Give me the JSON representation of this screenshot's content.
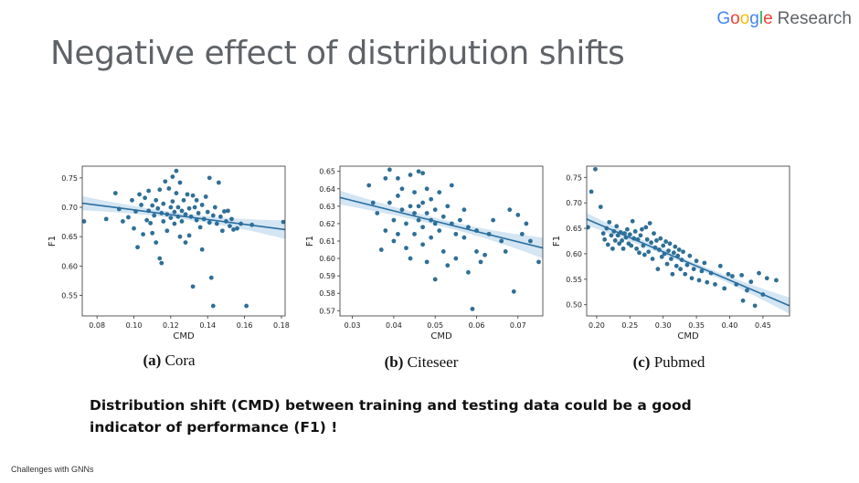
{
  "logo": {
    "g1": "G",
    "g2": "o",
    "g3": "o",
    "g4": "g",
    "g5": "l",
    "g6": "e",
    "research": "Research"
  },
  "title": "Negative effect of distribution shifts",
  "statement": "Distribution shift (CMD) between training and testing data could be a good indicator of performance (F1) !",
  "footer": "Challenges with GNNs",
  "colors": {
    "point": "#2f6f96",
    "line": "#2a6fa0",
    "band": "#c6dcef"
  },
  "chart_data": [
    {
      "type": "scatter",
      "id": "cora",
      "caption_tag": "(a)",
      "caption_name": "Cora",
      "xlabel": "CMD",
      "ylabel": "F1",
      "xlim": [
        0.072,
        0.182
      ],
      "ylim": [
        0.515,
        0.77
      ],
      "xticks": [
        0.08,
        0.1,
        0.12,
        0.14,
        0.16,
        0.18
      ],
      "xtick_labels": [
        "0.08",
        "0.10",
        "0.12",
        "0.14",
        "0.16",
        "0.18"
      ],
      "yticks": [
        0.55,
        0.6,
        0.65,
        0.7,
        0.75
      ],
      "ytick_labels": [
        "0.55",
        "0.60",
        "0.65",
        "0.70",
        "0.75"
      ],
      "fit": {
        "x": [
          0.072,
          0.182
        ],
        "y": [
          0.707,
          0.662
        ],
        "band_start": 0.012,
        "band_mid": 0.005,
        "band_end": 0.016
      },
      "points": [
        [
          0.073,
          0.676
        ],
        [
          0.085,
          0.68
        ],
        [
          0.09,
          0.724
        ],
        [
          0.092,
          0.697
        ],
        [
          0.094,
          0.676
        ],
        [
          0.097,
          0.683
        ],
        [
          0.099,
          0.712
        ],
        [
          0.1,
          0.664
        ],
        [
          0.101,
          0.693
        ],
        [
          0.102,
          0.632
        ],
        [
          0.103,
          0.722
        ],
        [
          0.104,
          0.704
        ],
        [
          0.105,
          0.654
        ],
        [
          0.106,
          0.716
        ],
        [
          0.107,
          0.678
        ],
        [
          0.108,
          0.728
        ],
        [
          0.108,
          0.694
        ],
        [
          0.109,
          0.673
        ],
        [
          0.11,
          0.703
        ],
        [
          0.11,
          0.656
        ],
        [
          0.111,
          0.686
        ],
        [
          0.112,
          0.712
        ],
        [
          0.112,
          0.64
        ],
        [
          0.113,
          0.698
        ],
        [
          0.114,
          0.73
        ],
        [
          0.114,
          0.613
        ],
        [
          0.115,
          0.69
        ],
        [
          0.115,
          0.605
        ],
        [
          0.116,
          0.676
        ],
        [
          0.116,
          0.706
        ],
        [
          0.117,
          0.744
        ],
        [
          0.118,
          0.688
        ],
        [
          0.118,
          0.66
        ],
        [
          0.119,
          0.732
        ],
        [
          0.12,
          0.7
        ],
        [
          0.12,
          0.682
        ],
        [
          0.121,
          0.752
        ],
        [
          0.121,
          0.71
        ],
        [
          0.122,
          0.672
        ],
        [
          0.122,
          0.692
        ],
        [
          0.123,
          0.762
        ],
        [
          0.123,
          0.724
        ],
        [
          0.124,
          0.684
        ],
        [
          0.124,
          0.7
        ],
        [
          0.125,
          0.65
        ],
        [
          0.125,
          0.742
        ],
        [
          0.126,
          0.694
        ],
        [
          0.126,
          0.676
        ],
        [
          0.127,
          0.712
        ],
        [
          0.128,
          0.688
        ],
        [
          0.128,
          0.64
        ],
        [
          0.129,
          0.722
        ],
        [
          0.13,
          0.698
        ],
        [
          0.13,
          0.652
        ],
        [
          0.131,
          0.684
        ],
        [
          0.132,
          0.72
        ],
        [
          0.132,
          0.565
        ],
        [
          0.133,
          0.7
        ],
        [
          0.134,
          0.678
        ],
        [
          0.134,
          0.712
        ],
        [
          0.135,
          0.69
        ],
        [
          0.136,
          0.666
        ],
        [
          0.137,
          0.704
        ],
        [
          0.137,
          0.628
        ],
        [
          0.138,
          0.68
        ],
        [
          0.139,
          0.718
        ],
        [
          0.14,
          0.692
        ],
        [
          0.141,
          0.674
        ],
        [
          0.141,
          0.75
        ],
        [
          0.142,
          0.58
        ],
        [
          0.143,
          0.686
        ],
        [
          0.143,
          0.532
        ],
        [
          0.144,
          0.7
        ],
        [
          0.145,
          0.672
        ],
        [
          0.146,
          0.742
        ],
        [
          0.147,
          0.684
        ],
        [
          0.148,
          0.66
        ],
        [
          0.149,
          0.693
        ],
        [
          0.15,
          0.676
        ],
        [
          0.151,
          0.694
        ],
        [
          0.152,
          0.668
        ],
        [
          0.153,
          0.68
        ],
        [
          0.154,
          0.662
        ],
        [
          0.156,
          0.664
        ],
        [
          0.158,
          0.672
        ],
        [
          0.161,
          0.532
        ],
        [
          0.164,
          0.67
        ],
        [
          0.181,
          0.675
        ]
      ]
    },
    {
      "type": "scatter",
      "id": "citeseer",
      "caption_tag": "(b)",
      "caption_name": "Citeseer",
      "xlabel": "CMD",
      "ylabel": "F1",
      "xlim": [
        0.027,
        0.076
      ],
      "ylim": [
        0.567,
        0.653
      ],
      "xticks": [
        0.03,
        0.04,
        0.05,
        0.06,
        0.07
      ],
      "xtick_labels": [
        "0.03",
        "0.04",
        "0.05",
        "0.06",
        "0.07"
      ],
      "yticks": [
        0.57,
        0.58,
        0.59,
        0.6,
        0.61,
        0.62,
        0.63,
        0.64,
        0.65
      ],
      "ytick_labels": [
        "0.57",
        "0.58",
        "0.59",
        "0.60",
        "0.61",
        "0.62",
        "0.63",
        "0.64",
        "0.65"
      ],
      "fit": {
        "x": [
          0.027,
          0.076
        ],
        "y": [
          0.635,
          0.606
        ],
        "band_start": 0.004,
        "band_mid": 0.002,
        "band_end": 0.006
      },
      "points": [
        [
          0.034,
          0.642
        ],
        [
          0.035,
          0.632
        ],
        [
          0.036,
          0.626
        ],
        [
          0.037,
          0.605
        ],
        [
          0.038,
          0.646
        ],
        [
          0.038,
          0.616
        ],
        [
          0.039,
          0.632
        ],
        [
          0.039,
          0.651
        ],
        [
          0.04,
          0.622
        ],
        [
          0.04,
          0.61
        ],
        [
          0.041,
          0.646
        ],
        [
          0.041,
          0.636
        ],
        [
          0.041,
          0.614
        ],
        [
          0.042,
          0.628
        ],
        [
          0.042,
          0.64
        ],
        [
          0.043,
          0.62
        ],
        [
          0.043,
          0.606
        ],
        [
          0.044,
          0.63
        ],
        [
          0.044,
          0.648
        ],
        [
          0.044,
          0.6
        ],
        [
          0.045,
          0.626
        ],
        [
          0.045,
          0.614
        ],
        [
          0.045,
          0.638
        ],
        [
          0.046,
          0.63
        ],
        [
          0.046,
          0.622
        ],
        [
          0.046,
          0.65
        ],
        [
          0.047,
          0.632
        ],
        [
          0.047,
          0.608
        ],
        [
          0.047,
          0.618
        ],
        [
          0.047,
          0.649
        ],
        [
          0.048,
          0.626
        ],
        [
          0.048,
          0.598
        ],
        [
          0.048,
          0.64
        ],
        [
          0.049,
          0.622
        ],
        [
          0.049,
          0.612
        ],
        [
          0.049,
          0.634
        ],
        [
          0.05,
          0.628
        ],
        [
          0.05,
          0.62
        ],
        [
          0.05,
          0.588
        ],
        [
          0.051,
          0.616
        ],
        [
          0.051,
          0.638
        ],
        [
          0.052,
          0.624
        ],
        [
          0.052,
          0.604
        ],
        [
          0.053,
          0.63
        ],
        [
          0.053,
          0.596
        ],
        [
          0.054,
          0.62
        ],
        [
          0.054,
          0.642
        ],
        [
          0.055,
          0.614
        ],
        [
          0.055,
          0.6
        ],
        [
          0.056,
          0.622
        ],
        [
          0.057,
          0.612
        ],
        [
          0.057,
          0.628
        ],
        [
          0.058,
          0.592
        ],
        [
          0.058,
          0.618
        ],
        [
          0.059,
          0.571
        ],
        [
          0.06,
          0.616
        ],
        [
          0.06,
          0.604
        ],
        [
          0.061,
          0.598
        ],
        [
          0.062,
          0.602
        ],
        [
          0.063,
          0.614
        ],
        [
          0.064,
          0.622
        ],
        [
          0.066,
          0.61
        ],
        [
          0.067,
          0.604
        ],
        [
          0.068,
          0.628
        ],
        [
          0.069,
          0.581
        ],
        [
          0.07,
          0.625
        ],
        [
          0.071,
          0.614
        ],
        [
          0.072,
          0.62
        ],
        [
          0.073,
          0.61
        ],
        [
          0.075,
          0.598
        ]
      ]
    },
    {
      "type": "scatter",
      "id": "pubmed",
      "caption_tag": "(c)",
      "caption_name": "Pubmed",
      "xlabel": "CMD",
      "ylabel": "F1",
      "xlim": [
        0.185,
        0.49
      ],
      "ylim": [
        0.478,
        0.772
      ],
      "xticks": [
        0.2,
        0.25,
        0.3,
        0.35,
        0.4,
        0.45
      ],
      "xtick_labels": [
        "0.20",
        "0.25",
        "0.30",
        "0.35",
        "0.40",
        "0.45"
      ],
      "yticks": [
        0.5,
        0.55,
        0.6,
        0.65,
        0.7,
        0.75
      ],
      "ytick_labels": [
        "0.50",
        "0.55",
        "0.60",
        "0.65",
        "0.70",
        "0.75"
      ],
      "fit": {
        "x": [
          0.185,
          0.49
        ],
        "y": [
          0.668,
          0.498
        ],
        "band_start": 0.012,
        "band_mid": 0.005,
        "band_end": 0.016
      },
      "points": [
        [
          0.187,
          0.652
        ],
        [
          0.192,
          0.722
        ],
        [
          0.198,
          0.766
        ],
        [
          0.206,
          0.692
        ],
        [
          0.21,
          0.64
        ],
        [
          0.212,
          0.628
        ],
        [
          0.215,
          0.65
        ],
        [
          0.217,
          0.618
        ],
        [
          0.219,
          0.662
        ],
        [
          0.222,
          0.636
        ],
        [
          0.224,
          0.61
        ],
        [
          0.226,
          0.644
        ],
        [
          0.228,
          0.626
        ],
        [
          0.23,
          0.654
        ],
        [
          0.232,
          0.636
        ],
        [
          0.234,
          0.62
        ],
        [
          0.236,
          0.642
        ],
        [
          0.238,
          0.626
        ],
        [
          0.24,
          0.61
        ],
        [
          0.242,
          0.64
        ],
        [
          0.244,
          0.632
        ],
        [
          0.246,
          0.648
        ],
        [
          0.248,
          0.62
        ],
        [
          0.25,
          0.638
        ],
        [
          0.252,
          0.616
        ],
        [
          0.254,
          0.664
        ],
        [
          0.256,
          0.63
        ],
        [
          0.258,
          0.644
        ],
        [
          0.26,
          0.61
        ],
        [
          0.262,
          0.628
        ],
        [
          0.264,
          0.602
        ],
        [
          0.266,
          0.636
        ],
        [
          0.268,
          0.648
        ],
        [
          0.27,
          0.616
        ],
        [
          0.272,
          0.598
        ],
        [
          0.274,
          0.652
        ],
        [
          0.276,
          0.628
        ],
        [
          0.278,
          0.604
        ],
        [
          0.28,
          0.66
        ],
        [
          0.282,
          0.622
        ],
        [
          0.284,
          0.59
        ],
        [
          0.286,
          0.64
        ],
        [
          0.288,
          0.612
        ],
        [
          0.29,
          0.626
        ],
        [
          0.292,
          0.57
        ],
        [
          0.294,
          0.608
        ],
        [
          0.296,
          0.63
        ],
        [
          0.298,
          0.594
        ],
        [
          0.3,
          0.616
        ],
        [
          0.302,
          0.6
        ],
        [
          0.304,
          0.624
        ],
        [
          0.306,
          0.58
        ],
        [
          0.308,
          0.606
        ],
        [
          0.31,
          0.62
        ],
        [
          0.312,
          0.59
        ],
        [
          0.314,
          0.56
        ],
        [
          0.316,
          0.602
        ],
        [
          0.318,
          0.614
        ],
        [
          0.32,
          0.576
        ],
        [
          0.322,
          0.596
        ],
        [
          0.324,
          0.608
        ],
        [
          0.326,
          0.57
        ],
        [
          0.328,
          0.588
        ],
        [
          0.33,
          0.604
        ],
        [
          0.333,
          0.56
        ],
        [
          0.336,
          0.578
        ],
        [
          0.34,
          0.596
        ],
        [
          0.343,
          0.552
        ],
        [
          0.346,
          0.57
        ],
        [
          0.35,
          0.586
        ],
        [
          0.354,
          0.548
        ],
        [
          0.358,
          0.566
        ],
        [
          0.362,
          0.582
        ],
        [
          0.366,
          0.544
        ],
        [
          0.372,
          0.562
        ],
        [
          0.378,
          0.54
        ],
        [
          0.386,
          0.576
        ],
        [
          0.392,
          0.532
        ],
        [
          0.398,
          0.56
        ],
        [
          0.404,
          0.556
        ],
        [
          0.41,
          0.54
        ],
        [
          0.418,
          0.558
        ],
        [
          0.42,
          0.508
        ],
        [
          0.426,
          0.528
        ],
        [
          0.432,
          0.545
        ],
        [
          0.438,
          0.498
        ],
        [
          0.444,
          0.562
        ],
        [
          0.45,
          0.52
        ],
        [
          0.456,
          0.552
        ],
        [
          0.47,
          0.548
        ]
      ]
    }
  ]
}
